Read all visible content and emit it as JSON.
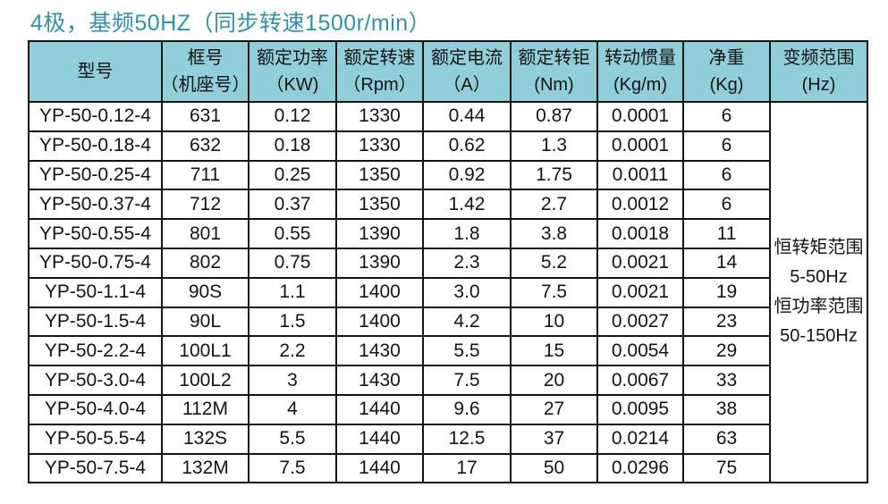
{
  "title": "4极，基频50HZ（同步转速1500r/min）",
  "colors": {
    "title_text": "#2e93a9",
    "header_bg": "#90ced9",
    "border": "#141414"
  },
  "table": {
    "columns": [
      {
        "line1": "型号",
        "line2": ""
      },
      {
        "line1": "框号",
        "line2": "（机座号）"
      },
      {
        "line1": "额定功率",
        "line2": "（KW)"
      },
      {
        "line1": "额定转速",
        "line2": "（Rpm）"
      },
      {
        "line1": "额定电流",
        "line2": "（A）"
      },
      {
        "line1": "额定转钜",
        "line2": "(Nm)"
      },
      {
        "line1": "转动惯量",
        "line2": "(Kg/m)"
      },
      {
        "line1": "净重",
        "line2": "(Kg)"
      },
      {
        "line1": "变频范围",
        "line2": "(Hz)"
      }
    ],
    "rows": [
      [
        "YP-50-0.12-4",
        "631",
        "0.12",
        "1330",
        "0.44",
        "0.87",
        "0.0001",
        "6"
      ],
      [
        "YP-50-0.18-4",
        "632",
        "0.18",
        "1330",
        "0.62",
        "1.3",
        "0.0001",
        "6"
      ],
      [
        "YP-50-0.25-4",
        "711",
        "0.25",
        "1350",
        "0.92",
        "1.75",
        "0.0011",
        "6"
      ],
      [
        "YP-50-0.37-4",
        "712",
        "0.37",
        "1350",
        "1.42",
        "2.7",
        "0.0012",
        "6"
      ],
      [
        "YP-50-0.55-4",
        "801",
        "0.55",
        "1390",
        "1.8",
        "3.8",
        "0.0018",
        "11"
      ],
      [
        "YP-50-0.75-4",
        "802",
        "0.75",
        "1390",
        "2.3",
        "5.2",
        "0.0021",
        "14"
      ],
      [
        "YP-50-1.1-4",
        "90S",
        "1.1",
        "1400",
        "3.0",
        "7.5",
        "0.0021",
        "19"
      ],
      [
        "YP-50-1.5-4",
        "90L",
        "1.5",
        "1400",
        "4.2",
        "10",
        "0.0027",
        "23"
      ],
      [
        "YP-50-2.2-4",
        "100L1",
        "2.2",
        "1430",
        "5.5",
        "15",
        "0.0054",
        "29"
      ],
      [
        "YP-50-3.0-4",
        "100L2",
        "3",
        "1430",
        "7.5",
        "20",
        "0.0067",
        "33"
      ],
      [
        "YP-50-4.0-4",
        "112M",
        "4",
        "1440",
        "9.6",
        "27",
        "0.0095",
        "38"
      ],
      [
        "YP-50-5.5-4",
        "132S",
        "5.5",
        "1440",
        "12.5",
        "37",
        "0.0214",
        "63"
      ],
      [
        "YP-50-7.5-4",
        "132M",
        "7.5",
        "1440",
        "17",
        "50",
        "0.0296",
        "75"
      ]
    ],
    "freq_range_note": [
      "恒转矩范围",
      "5-50Hz",
      "恒功率范围",
      "50-150Hz"
    ]
  }
}
